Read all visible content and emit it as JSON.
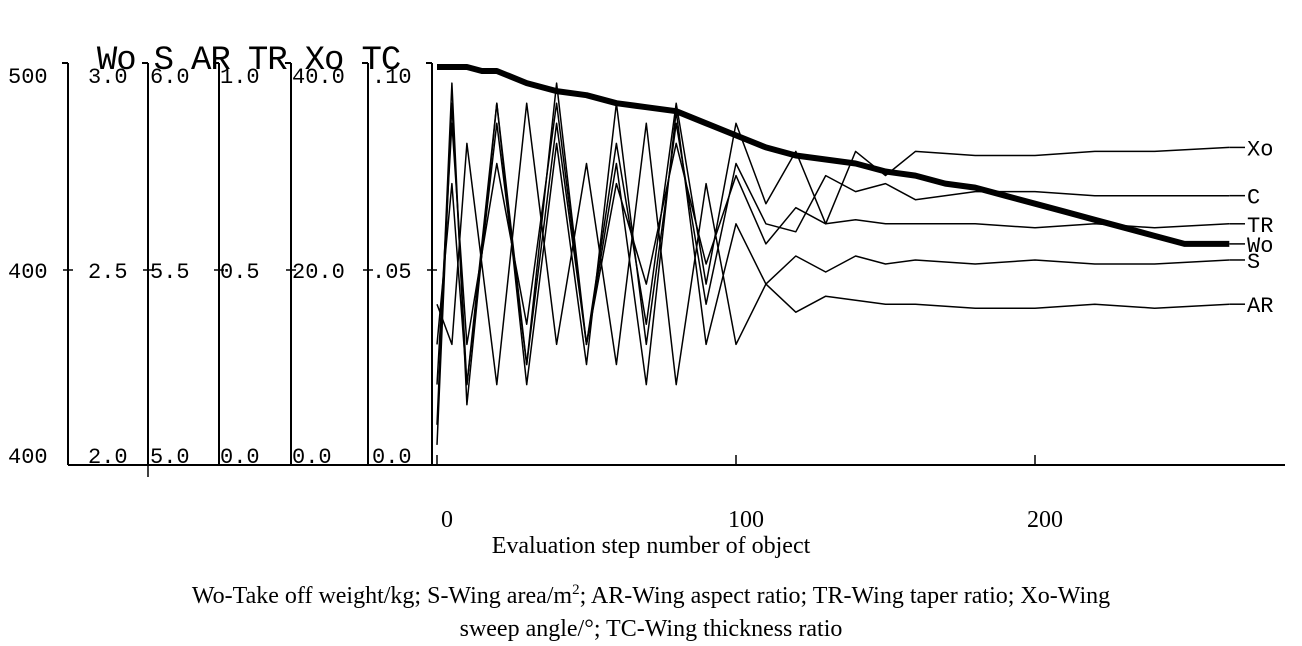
{
  "header": {
    "labels": [
      "Wo",
      "S",
      "AR",
      "TR",
      "Xo",
      "TC"
    ]
  },
  "axes": [
    {
      "name": "Wo",
      "top": "500",
      "mid": "400",
      "bottom": "400"
    },
    {
      "name": "S",
      "top": "3.0",
      "mid": "2.5",
      "bottom": "2.0"
    },
    {
      "name": "AR",
      "top": "6.0",
      "mid": "5.5",
      "bottom": "5.0"
    },
    {
      "name": "TR",
      "top": "1.0",
      "mid": "0.5",
      "bottom": "0.0"
    },
    {
      "name": "Xo",
      "top": "40.0",
      "mid": "20.0",
      "bottom": "0.0"
    },
    {
      "name": "TC",
      "top": ".10",
      "mid": ".05",
      "bottom": "0.0"
    }
  ],
  "xlabel": "Evaluation step number of object",
  "caption": {
    "part1": "Wo-Take off weight/kg; S-Wing area/m",
    "sup": "2",
    "part2": "; AR-Wing aspect ratio; TR-Wing taper ratio; Xo-Wing",
    "line2": "sweep angle/°; TC-Wing thickness ratio"
  },
  "chart_data": {
    "type": "line",
    "xlabel": "Evaluation step number of object",
    "xlim": [
      0,
      280
    ],
    "ylim": [
      0,
      1
    ],
    "x_ticks": [
      "0",
      "100",
      "200"
    ],
    "x_tick_values": [
      0,
      100,
      200
    ],
    "y_scale_note": "values are normalized 0-1 on the shared vertical scale",
    "series": [
      {
        "name": "Xo",
        "x": [
          0,
          5,
          10,
          20,
          30,
          40,
          50,
          60,
          70,
          80,
          90,
          100,
          110,
          120,
          130,
          140,
          150,
          160,
          180,
          200,
          220,
          240,
          265
        ],
        "y": [
          0.05,
          0.9,
          0.2,
          0.85,
          0.25,
          0.95,
          0.3,
          0.8,
          0.35,
          0.9,
          0.45,
          0.85,
          0.65,
          0.78,
          0.6,
          0.78,
          0.72,
          0.78,
          0.77,
          0.77,
          0.78,
          0.78,
          0.79
        ]
      },
      {
        "name": "C",
        "x": [
          0,
          5,
          10,
          20,
          30,
          40,
          50,
          60,
          70,
          80,
          90,
          100,
          110,
          120,
          130,
          140,
          150,
          160,
          180,
          200,
          220,
          240,
          265
        ],
        "y": [
          0.1,
          0.95,
          0.15,
          0.9,
          0.2,
          0.8,
          0.25,
          0.9,
          0.3,
          0.85,
          0.4,
          0.75,
          0.6,
          0.58,
          0.72,
          0.68,
          0.7,
          0.66,
          0.68,
          0.68,
          0.67,
          0.67,
          0.67
        ]
      },
      {
        "name": "TR",
        "x": [
          0,
          5,
          10,
          20,
          30,
          40,
          50,
          60,
          70,
          80,
          90,
          100,
          110,
          120,
          130,
          140,
          150,
          160,
          180,
          200,
          220,
          240,
          265
        ],
        "y": [
          0.2,
          0.85,
          0.3,
          0.75,
          0.35,
          0.9,
          0.3,
          0.7,
          0.45,
          0.8,
          0.5,
          0.72,
          0.55,
          0.64,
          0.6,
          0.61,
          0.6,
          0.6,
          0.6,
          0.59,
          0.6,
          0.59,
          0.6
        ]
      },
      {
        "name": "Wo",
        "x": [
          0,
          5,
          10,
          15,
          20,
          30,
          40,
          50,
          60,
          70,
          80,
          90,
          100,
          110,
          120,
          130,
          140,
          150,
          160,
          170,
          180,
          190,
          200,
          210,
          220,
          230,
          240,
          250,
          265
        ],
        "y": [
          0.99,
          0.99,
          0.99,
          0.98,
          0.98,
          0.95,
          0.93,
          0.92,
          0.9,
          0.89,
          0.88,
          0.85,
          0.82,
          0.79,
          0.77,
          0.76,
          0.75,
          0.73,
          0.72,
          0.7,
          0.69,
          0.67,
          0.65,
          0.63,
          0.61,
          0.59,
          0.57,
          0.55,
          0.55
        ]
      },
      {
        "name": "S",
        "x": [
          0,
          5,
          10,
          20,
          30,
          40,
          50,
          60,
          70,
          80,
          90,
          100,
          110,
          120,
          130,
          140,
          150,
          160,
          180,
          200,
          220,
          240,
          265
        ],
        "y": [
          0.3,
          0.7,
          0.2,
          0.9,
          0.25,
          0.85,
          0.3,
          0.75,
          0.2,
          0.88,
          0.3,
          0.6,
          0.45,
          0.52,
          0.48,
          0.52,
          0.5,
          0.51,
          0.5,
          0.51,
          0.5,
          0.5,
          0.51
        ]
      },
      {
        "name": "AR",
        "x": [
          0,
          5,
          10,
          20,
          30,
          40,
          50,
          60,
          70,
          80,
          90,
          100,
          110,
          120,
          130,
          140,
          150,
          160,
          180,
          200,
          220,
          240,
          265
        ],
        "y": [
          0.4,
          0.3,
          0.8,
          0.2,
          0.9,
          0.3,
          0.75,
          0.25,
          0.85,
          0.2,
          0.7,
          0.3,
          0.45,
          0.38,
          0.42,
          0.41,
          0.4,
          0.4,
          0.39,
          0.39,
          0.4,
          0.39,
          0.4
        ]
      }
    ]
  }
}
